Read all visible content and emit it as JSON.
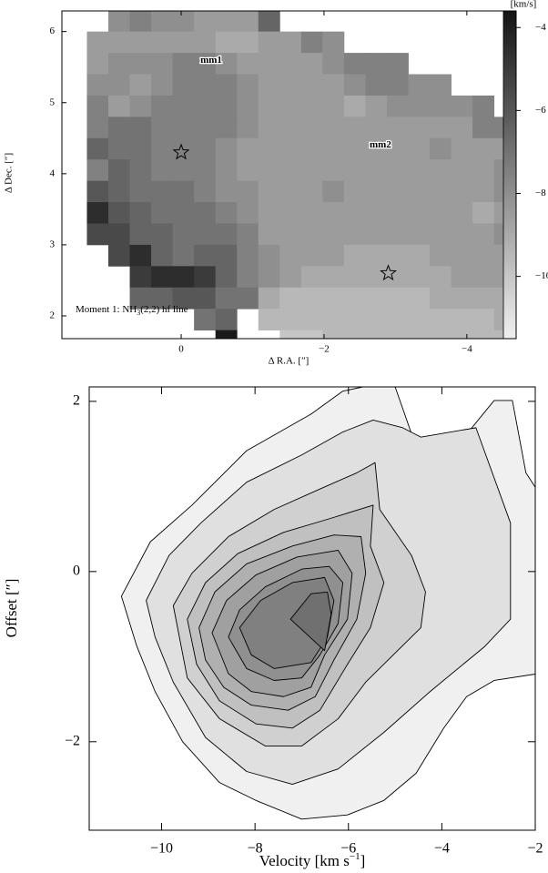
{
  "chart_data": [
    {
      "type": "heatmap",
      "xlabel": "Δ R.A. [″]",
      "ylabel": "Δ Dec. [″]",
      "note": [
        "Moment 1: NH",
        "3",
        "(2,2) hf line"
      ],
      "xlim": [
        1.67,
        -4.69
      ],
      "ylim": [
        1.68,
        6.29
      ],
      "xticks": [
        0,
        {
          "value": -2,
          "label": "−2"
        },
        {
          "value": -4,
          "label": "−4"
        }
      ],
      "yticks": [
        2,
        3,
        4,
        5,
        6
      ],
      "x": [
        1.17,
        0.87,
        0.57,
        0.27,
        -0.03,
        -0.33,
        -0.63,
        -0.93,
        -1.23,
        -1.53,
        -1.83,
        -2.13,
        -2.43,
        -2.73,
        -3.03,
        -3.33,
        -3.63,
        -3.93,
        -4.23,
        -4.53
      ],
      "y": [
        6.15,
        5.85,
        5.55,
        5.25,
        4.95,
        4.65,
        4.35,
        4.05,
        3.75,
        3.45,
        3.15,
        2.85,
        2.55,
        2.25,
        1.95,
        1.65
      ],
      "values": [
        [
          null,
          -8,
          -7.5,
          -8,
          -8,
          -8.5,
          -8.5,
          -8.5,
          -6.5,
          null,
          null,
          null,
          null,
          null,
          null,
          null,
          null,
          null,
          null,
          null
        ],
        [
          -8.5,
          -8.5,
          -8.5,
          -8.5,
          -8.5,
          -8.5,
          -9,
          -9,
          -8.5,
          -8.5,
          -7.5,
          -8,
          null,
          null,
          null,
          null,
          null,
          null,
          null,
          null
        ],
        [
          -8.5,
          -8,
          -8,
          -8,
          -7.5,
          -7.5,
          -8,
          -8.5,
          -8.5,
          -8.5,
          -8.5,
          -8,
          -7.5,
          -7.5,
          -7.5,
          null,
          null,
          null,
          null,
          null
        ],
        [
          -8,
          -8,
          -8.5,
          -8,
          -7.5,
          -7.5,
          -7.5,
          -8,
          -8.5,
          -8.5,
          -8.5,
          -8.5,
          -8,
          -7.5,
          -7.5,
          -8,
          -8,
          null,
          null,
          null
        ],
        [
          -7.5,
          -8.5,
          -8,
          -7.5,
          -7.5,
          -7.5,
          -7.5,
          -8,
          -8.5,
          -8.5,
          -8.5,
          -8.5,
          -9,
          -8.5,
          -8,
          -8,
          -8,
          -8,
          -7.5,
          null
        ],
        [
          -7.5,
          -7,
          -7,
          -7.5,
          -7.5,
          -7.5,
          -7.5,
          -8,
          -8.5,
          -8.5,
          -8.5,
          -8.5,
          -8.5,
          -8.5,
          -8.5,
          -8.5,
          -8.5,
          -8.5,
          -7.5,
          -7.5
        ],
        [
          -6.5,
          -7,
          -7,
          -7.5,
          -7.5,
          -7.5,
          -8,
          -8.5,
          -8.5,
          -8.5,
          -8.5,
          -8.5,
          -8.5,
          -8.5,
          -8.5,
          -8.5,
          -8,
          -8.5,
          -8.5,
          -8.5
        ],
        [
          -7.5,
          -6.5,
          -7,
          -7.5,
          -7.5,
          -7.5,
          -8,
          -8.5,
          -8.5,
          -8.5,
          -8.5,
          -8.5,
          -8.5,
          -8.5,
          -8.5,
          -8.5,
          -8.5,
          -8.5,
          -8.5,
          -8
        ],
        [
          -6,
          -6.5,
          -7,
          -7,
          -7,
          -7.5,
          -8,
          -8,
          -8.5,
          -8.5,
          -8.5,
          -8,
          -8.5,
          -8.5,
          -8.5,
          -8.5,
          -8.5,
          -8.5,
          -8.5,
          -8
        ],
        [
          -4.5,
          -6,
          -6.5,
          -7,
          -7,
          -7,
          -7.5,
          -8,
          -8.5,
          -8.5,
          -8.5,
          -8.5,
          -8.5,
          -8.5,
          -8.5,
          -8.5,
          -8.5,
          -8.5,
          -9,
          -8.5
        ],
        [
          -5.5,
          -5.5,
          -6.5,
          -6.5,
          -7,
          -7,
          -7,
          -7.5,
          -8.5,
          -8.5,
          -8.5,
          -8.5,
          -8.5,
          -8.5,
          -8.5,
          -8.5,
          -8.5,
          -8.5,
          -8.5,
          -8
        ],
        [
          null,
          -5.5,
          -4.5,
          -6.5,
          -7,
          -6.5,
          -6.5,
          -7.5,
          -8,
          -8.5,
          -8.5,
          -8.5,
          -9,
          -9,
          -9,
          -9,
          -8.5,
          -8.5,
          -8.5,
          -8.5
        ],
        [
          null,
          null,
          -5,
          -4.5,
          -4.5,
          -5,
          -6.5,
          -7.5,
          -8,
          -8.5,
          -9,
          -9,
          -9,
          -9,
          -9,
          -9,
          -9,
          -8.5,
          -8.5,
          -8.5
        ],
        [
          null,
          null,
          -6.5,
          -6.5,
          -6,
          -6,
          -7,
          -7,
          -9,
          -9.5,
          -9.5,
          -9.5,
          -9.5,
          -9.5,
          -9.5,
          -9.5,
          -9,
          -9,
          -9,
          -9
        ],
        [
          null,
          null,
          null,
          null,
          null,
          -7,
          -6.5,
          null,
          -9.5,
          -9.5,
          -9.5,
          -9.5,
          -9.5,
          -9.5,
          -9.5,
          -9.5,
          -9.5,
          -9.5,
          -9.5,
          -9
        ],
        [
          null,
          null,
          null,
          null,
          null,
          null,
          -3.8,
          null,
          null,
          -10,
          -10,
          -9.5,
          -9.5,
          -9.5,
          -9.5,
          -9.5,
          -9.5,
          -9.5,
          -9.5,
          -9.5
        ]
      ],
      "colormap": [
        "#f0f0f0",
        "#141414"
      ],
      "colorbar": {
        "label": "[km/s]",
        "lim": [
          -11.5,
          -3.6
        ],
        "ticks": [
          {
            "value": -4,
            "label": "−4"
          },
          {
            "value": -6,
            "label": "−6"
          },
          {
            "value": -8,
            "label": "−8"
          },
          {
            "value": -10,
            "label": "−10"
          }
        ]
      },
      "markers": {
        "x": [
          0,
          -2.9
        ],
        "y": [
          4.3,
          2.6
        ]
      },
      "annotations": [
        {
          "text": "mm1",
          "x": -0.42,
          "y": 5.59
        },
        {
          "text": "mm2",
          "x": -2.79,
          "y": 4.4
        }
      ]
    },
    {
      "type": "contour",
      "xlabel": [
        "Velocity [km s",
        "−1",
        "]"
      ],
      "ylabel": "Offset [″]",
      "xlim": [
        -11.55,
        -2
      ],
      "ylim": [
        -3.04,
        2.17
      ],
      "xticks": [
        {
          "value": -10,
          "label": "−10"
        },
        {
          "value": -8,
          "label": "−8"
        },
        {
          "value": -6,
          "label": "−6"
        },
        {
          "value": -4,
          "label": "−4"
        },
        {
          "value": -2,
          "label": "−2"
        }
      ],
      "yticks": [
        {
          "value": -2,
          "label": "−2"
        },
        0,
        2
      ],
      "contours": [
        {
          "color": "#f0f0f0",
          "x": [
            -10.86,
            -10.24,
            -9.35,
            -8.18,
            -6.8,
            -6.12,
            -5.69,
            -5.0,
            -4.49,
            -3.76,
            -2.88,
            -2.49,
            -2.2,
            -1.94,
            -1.94,
            -2.88,
            -3.47,
            -3.96,
            -4.55,
            -5.24,
            -6.02,
            -7.0,
            -7.98,
            -8.76,
            -9.55,
            -10.14,
            -10.53
          ],
          "y": [
            -0.29,
            0.35,
            0.78,
            1.42,
            1.85,
            2.12,
            2.17,
            2.17,
            1.37,
            1.42,
            2.01,
            2.01,
            1.16,
            0.94,
            -1.2,
            -1.28,
            -1.47,
            -1.84,
            -2.37,
            -2.69,
            -2.86,
            -2.91,
            -2.69,
            -2.48,
            -2.0,
            -1.41,
            -0.88
          ]
        },
        {
          "color": "#e0e0e0",
          "x": [
            -10.33,
            -9.84,
            -9.16,
            -8.18,
            -7.0,
            -6.12,
            -5.47,
            -4.84,
            -4.45,
            -3.27,
            -2.53,
            -2.53,
            -3.08,
            -4.25,
            -5.24,
            -6.22,
            -7.2,
            -8.18,
            -9.06,
            -9.75,
            -10.14
          ],
          "y": [
            -0.34,
            0.19,
            0.57,
            1.05,
            1.37,
            1.64,
            1.78,
            1.69,
            1.58,
            1.69,
            0.57,
            -0.56,
            -0.88,
            -1.41,
            -1.89,
            -2.32,
            -2.5,
            -2.35,
            -1.95,
            -1.3,
            -0.77
          ]
        },
        {
          "color": "#d0d0d0",
          "x": [
            -9.75,
            -9.35,
            -8.57,
            -7.59,
            -6.61,
            -5.82,
            -5.43,
            -5.33,
            -4.65,
            -4.35,
            -4.45,
            -5.04,
            -5.63,
            -6.22,
            -7.0,
            -7.78,
            -8.76,
            -9.45
          ],
          "y": [
            -0.4,
            -0.02,
            0.41,
            0.73,
            0.97,
            1.16,
            1.28,
            0.73,
            0.19,
            -0.24,
            -0.66,
            -0.98,
            -1.3,
            -1.73,
            -2.05,
            -2.05,
            -1.73,
            -1.25
          ]
        },
        {
          "color": "#c0c0c0",
          "x": [
            -9.45,
            -9.06,
            -8.37,
            -7.39,
            -6.41,
            -5.47,
            -5.53,
            -5.24,
            -5.53,
            -6.02,
            -6.61,
            -7.2,
            -7.98,
            -8.76,
            -9.25
          ],
          "y": [
            -0.56,
            -0.13,
            0.21,
            0.46,
            0.62,
            0.78,
            0.3,
            -0.13,
            -0.66,
            -1.09,
            -1.63,
            -1.84,
            -1.79,
            -1.52,
            -1.09
          ]
        },
        {
          "color": "#b0b0b0",
          "x": [
            -9.2,
            -8.86,
            -8.18,
            -7.2,
            -6.31,
            -5.73,
            -5.63,
            -5.82,
            -6.31,
            -6.71,
            -7.29,
            -8.08,
            -8.67,
            -9.06
          ],
          "y": [
            -0.66,
            -0.24,
            0.09,
            0.3,
            0.43,
            0.41,
            -0.02,
            -0.56,
            -1.04,
            -1.47,
            -1.63,
            -1.57,
            -1.36,
            -1.04
          ]
        },
        {
          "color": "#a0a0a0",
          "x": [
            -8.92,
            -8.61,
            -7.98,
            -7.1,
            -6.22,
            -5.92,
            -6.02,
            -6.51,
            -6.8,
            -7.39,
            -8.08,
            -8.57
          ],
          "y": [
            -0.72,
            -0.34,
            -0.04,
            0.17,
            0.25,
            -0.02,
            -0.56,
            -0.98,
            -1.36,
            -1.47,
            -1.41,
            -1.2
          ]
        },
        {
          "color": "#909090",
          "x": [
            -8.57,
            -8.33,
            -7.78,
            -6.99,
            -6.41,
            -6.12,
            -6.22,
            -6.61,
            -7.0,
            -7.59,
            -8.18
          ],
          "y": [
            -0.77,
            -0.45,
            -0.18,
            0.03,
            0.06,
            -0.13,
            -0.61,
            -0.98,
            -1.25,
            -1.28,
            -1.14
          ]
        },
        {
          "color": "#808080",
          "x": [
            -8.33,
            -7.88,
            -7.2,
            -6.51,
            -6.31,
            -6.45,
            -6.8,
            -7.59,
            -8.08
          ],
          "y": [
            -0.66,
            -0.34,
            -0.13,
            -0.07,
            -0.34,
            -0.77,
            -1.07,
            -1.14,
            -0.98
          ]
        },
        {
          "color": "#707070",
          "x": [
            -7.24,
            -6.8,
            -6.45,
            -6.37,
            -6.51
          ],
          "y": [
            -0.56,
            -0.26,
            -0.24,
            -0.5,
            -0.93
          ]
        }
      ]
    }
  ]
}
